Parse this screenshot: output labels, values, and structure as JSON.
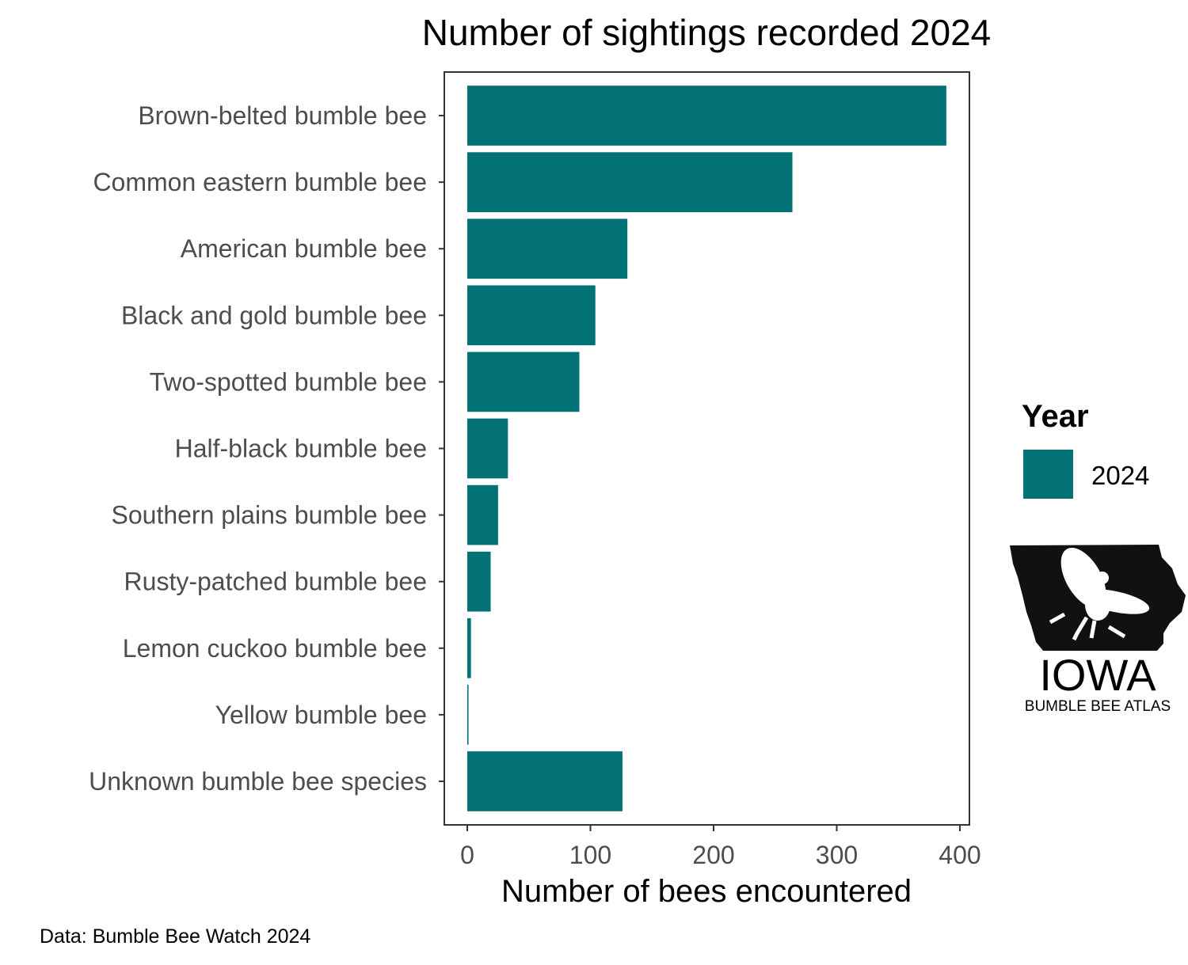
{
  "chart_data": {
    "type": "bar",
    "orientation": "horizontal",
    "title": "Number of sightings recorded 2024",
    "xlabel": "Number of bees encountered",
    "ylabel": "",
    "xlim": [
      0,
      400
    ],
    "xticks": [
      0,
      100,
      200,
      300,
      400
    ],
    "grid": false,
    "categories": [
      "Brown-belted bumble bee",
      "Common eastern bumble bee",
      "American bumble bee",
      "Black and gold bumble bee",
      "Two-spotted bumble bee",
      "Half-black bumble bee",
      "Southern plains bumble bee",
      "Rusty-patched bumble bee",
      "Lemon cuckoo bumble bee",
      "Yellow bumble bee",
      "Unknown bumble bee species"
    ],
    "series": [
      {
        "name": "2024",
        "color": "#027276",
        "values": [
          389,
          264,
          130,
          104,
          91,
          33,
          25,
          19,
          3,
          1,
          126
        ]
      }
    ],
    "legend": {
      "title": "Year",
      "placement": "right"
    }
  },
  "caption": "Data: Bumble Bee Watch 2024",
  "logo": {
    "name": "iowa-bumble-bee-atlas-logo",
    "main": "IOWA",
    "sub": "BUMBLE BEE ATLAS"
  }
}
